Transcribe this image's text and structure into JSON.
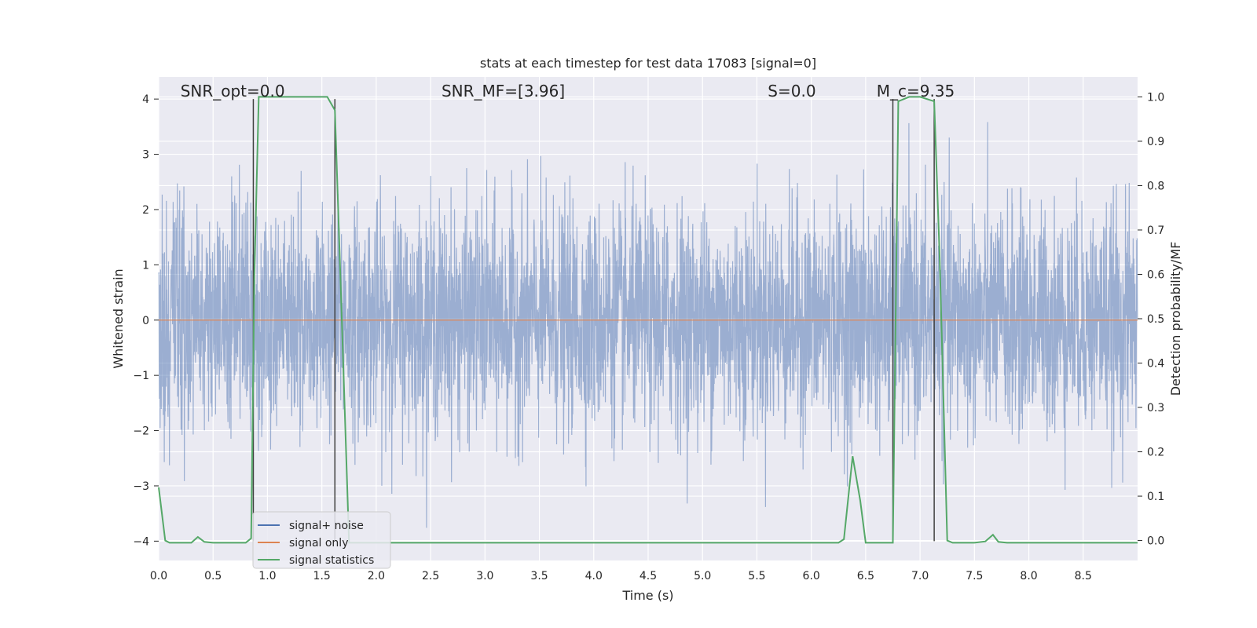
{
  "chart_data": {
    "type": "line",
    "title": "stats at each timestep for test data 17083 [signal=0]",
    "xlabel": "Time (s)",
    "ylabel_left": "Whitened strain",
    "ylabel_right": "Detection probability/MF",
    "xlim": [
      0,
      9.0
    ],
    "ylim_left": [
      -4.35,
      4.4
    ],
    "ylim_right": [
      -0.045,
      1.045
    ],
    "x_ticks": [
      "0.0",
      "0.5",
      "1.0",
      "1.5",
      "2.0",
      "2.5",
      "3.0",
      "3.5",
      "4.0",
      "4.5",
      "5.0",
      "5.5",
      "6.0",
      "6.5",
      "7.0",
      "7.5",
      "8.0",
      "8.5"
    ],
    "y_left_ticks": [
      "−4",
      "−3",
      "−2",
      "−1",
      "0",
      "1",
      "2",
      "3",
      "4"
    ],
    "y_right_ticks": [
      "0.0",
      "0.1",
      "0.2",
      "0.3",
      "0.4",
      "0.5",
      "0.6",
      "0.7",
      "0.8",
      "0.9",
      "1.0"
    ],
    "grid": true,
    "legend_position": "lower-left",
    "annotations": [
      {
        "text": "SNR_opt=0.0",
        "x": 0.2,
        "y": 4.1
      },
      {
        "text": "SNR_MF=[3.96]",
        "x": 2.6,
        "y": 4.1
      },
      {
        "text": "S=0.0",
        "x": 5.6,
        "y": 4.1
      },
      {
        "text": "M_c=9.35",
        "x": 6.6,
        "y": 4.1
      }
    ],
    "vertical_lines_x": [
      0.87,
      1.62,
      6.75,
      7.13
    ],
    "series": [
      {
        "name": "signal+ noise",
        "color": "#4c72b0",
        "axis": "left",
        "description_values": "whitened noise, about ±1.5 typical, peaks near ±4",
        "amplitude_range": [
          -4.0,
          4.0
        ]
      },
      {
        "name": "signal only",
        "color": "#dd8452",
        "axis": "left",
        "x": [
          0.0,
          9.0
        ],
        "values": [
          0.0,
          0.0
        ]
      },
      {
        "name": "signal statistics",
        "color": "#55a868",
        "axis": "right",
        "x": [
          0.0,
          0.03,
          0.06,
          0.1,
          0.15,
          0.25,
          0.3,
          0.36,
          0.42,
          0.5,
          0.6,
          0.7,
          0.8,
          0.85,
          0.88,
          0.92,
          0.95,
          1.0,
          1.2,
          1.4,
          1.55,
          1.62,
          1.67,
          1.75,
          2.0,
          3.0,
          4.0,
          5.0,
          6.0,
          6.25,
          6.3,
          6.38,
          6.45,
          6.5,
          6.55,
          6.7,
          6.75,
          6.8,
          6.9,
          7.0,
          7.13,
          7.18,
          7.25,
          7.3,
          7.5,
          7.6,
          7.67,
          7.72,
          7.8,
          8.0,
          8.5,
          9.0
        ],
        "values": [
          0.12,
          0.06,
          0.0,
          -0.005,
          -0.005,
          -0.005,
          -0.005,
          0.008,
          -0.003,
          -0.005,
          -0.005,
          -0.005,
          -0.005,
          0.005,
          0.6,
          1.0,
          1.0,
          1.0,
          1.0,
          1.0,
          1.0,
          0.97,
          0.6,
          -0.005,
          -0.005,
          -0.005,
          -0.005,
          -0.005,
          -0.005,
          -0.005,
          0.003,
          0.19,
          0.09,
          -0.005,
          -0.005,
          -0.005,
          -0.005,
          0.99,
          1.0,
          1.0,
          0.99,
          0.64,
          0.0,
          -0.005,
          -0.005,
          -0.002,
          0.013,
          -0.003,
          -0.005,
          -0.005,
          -0.005,
          -0.005
        ]
      }
    ]
  },
  "legend": {
    "items": [
      {
        "label": "signal+ noise",
        "color": "#4c72b0"
      },
      {
        "label": "signal only",
        "color": "#dd8452"
      },
      {
        "label": "signal statistics",
        "color": "#55a868"
      }
    ]
  },
  "colors": {
    "background": "#eaeaf2",
    "grid": "#ffffff",
    "vline": "#404040"
  }
}
